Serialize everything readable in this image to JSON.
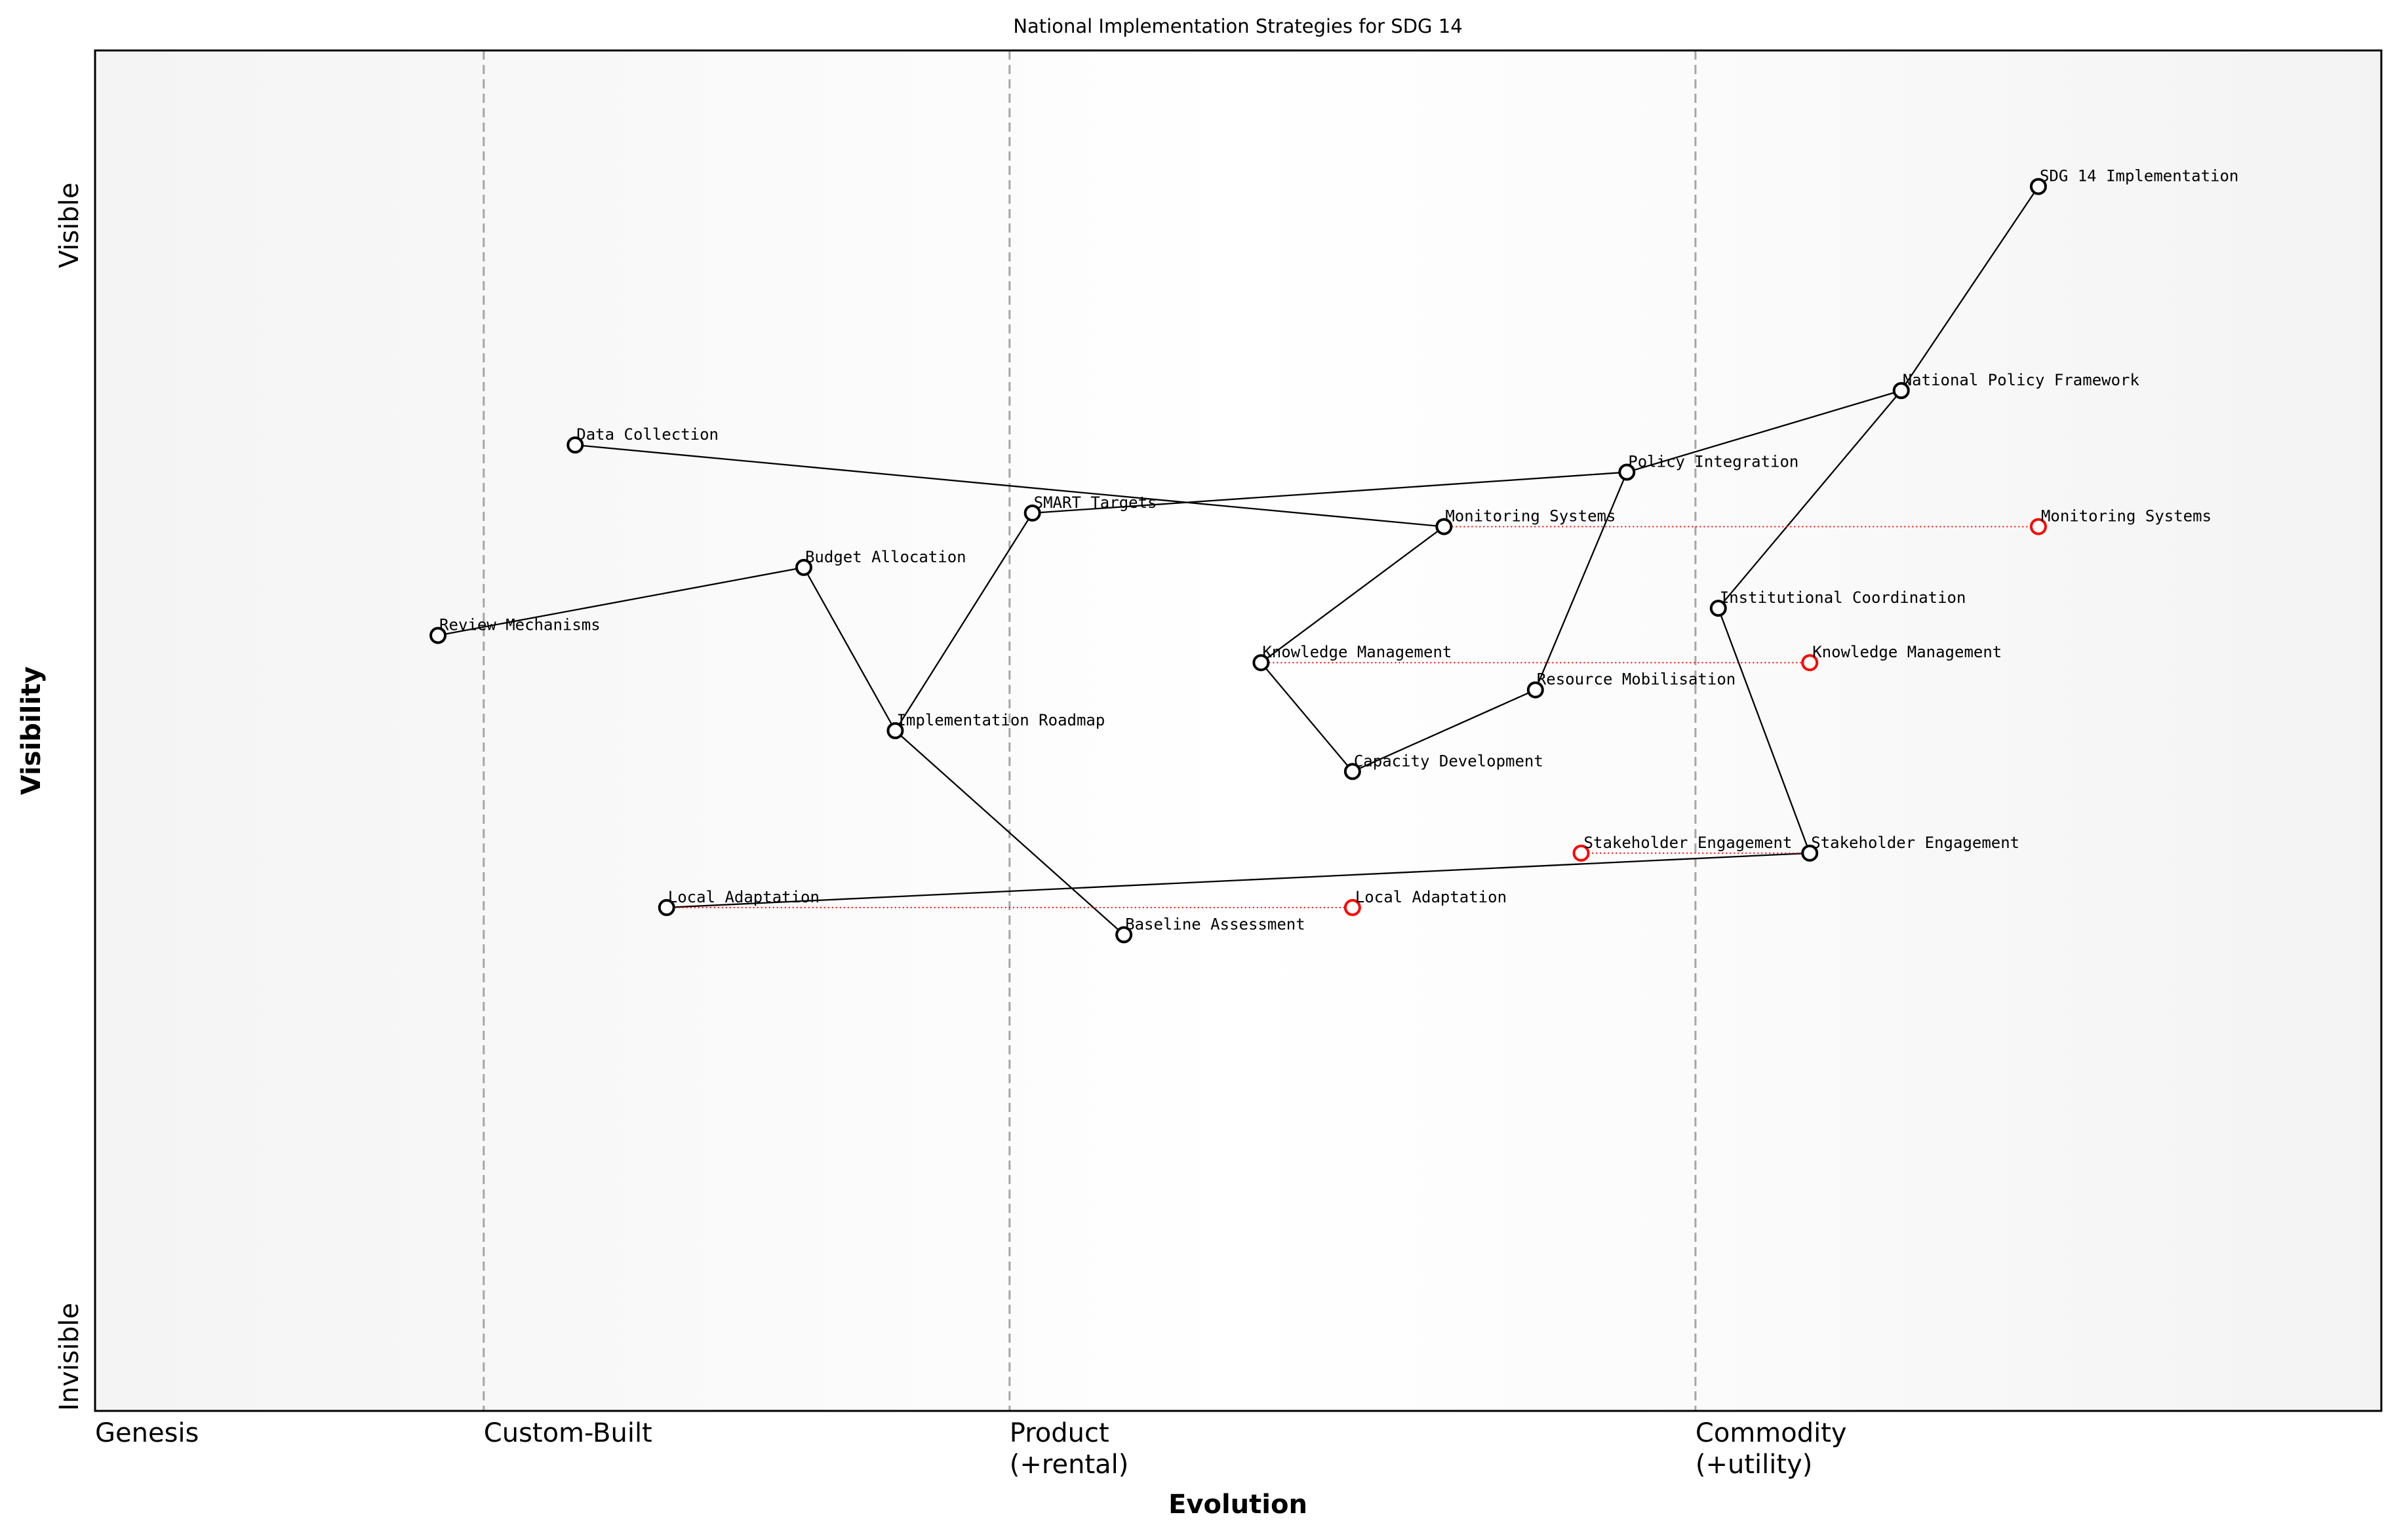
{
  "chart_data": {
    "type": "wardley",
    "title": "National Implementation Strategies for SDG 14",
    "x_label": "Evolution",
    "y_label": "Visibility",
    "xlim": [
      0,
      1
    ],
    "ylim": [
      0,
      1
    ],
    "xticks": [
      {
        "value": 0,
        "label": "Genesis"
      },
      {
        "value": 0.17,
        "label": "Custom-Built"
      },
      {
        "value": 0.4,
        "label": "Product\n(+rental)"
      },
      {
        "value": 0.7,
        "label": "Commodity\n(+utility)"
      }
    ],
    "yticks": [
      {
        "value": 0,
        "label": "Invisible"
      },
      {
        "value": 0.84,
        "label": "Visible"
      }
    ],
    "component_color": "#000000",
    "evolve_color": "#ff0000",
    "components": [
      {
        "name": "SDG 14 Implementation",
        "x": 0.85,
        "y": 0.9
      },
      {
        "name": "National Policy Framework",
        "x": 0.79,
        "y": 0.75
      },
      {
        "name": "Policy Integration",
        "x": 0.67,
        "y": 0.69
      },
      {
        "name": "Monitoring Systems",
        "x": 0.59,
        "y": 0.65
      },
      {
        "name": "Institutional Coordination",
        "x": 0.71,
        "y": 0.59
      },
      {
        "name": "Knowledge Management",
        "x": 0.51,
        "y": 0.55
      },
      {
        "name": "Resource Mobilisation",
        "x": 0.63,
        "y": 0.53
      },
      {
        "name": "Capacity Development",
        "x": 0.55,
        "y": 0.47
      },
      {
        "name": "Stakeholder Engagement",
        "x": 0.75,
        "y": 0.41
      },
      {
        "name": "Local Adaptation",
        "x": 0.25,
        "y": 0.37
      },
      {
        "name": "Baseline Assessment",
        "x": 0.45,
        "y": 0.35
      },
      {
        "name": "Implementation Roadmap",
        "x": 0.35,
        "y": 0.5
      },
      {
        "name": "SMART Targets",
        "x": 0.41,
        "y": 0.66
      },
      {
        "name": "Budget Allocation",
        "x": 0.31,
        "y": 0.62
      },
      {
        "name": "Review Mechanisms",
        "x": 0.15,
        "y": 0.57
      },
      {
        "name": "Data Collection",
        "x": 0.21,
        "y": 0.71
      }
    ],
    "links": [
      [
        "SDG 14 Implementation",
        "National Policy Framework"
      ],
      [
        "National Policy Framework",
        "Policy Integration"
      ],
      [
        "National Policy Framework",
        "Institutional Coordination"
      ],
      [
        "Policy Integration",
        "SMART Targets"
      ],
      [
        "Policy Integration",
        "Resource Mobilisation"
      ],
      [
        "Institutional Coordination",
        "Stakeholder Engagement"
      ],
      [
        "Stakeholder Engagement",
        "Local Adaptation"
      ],
      [
        "Resource Mobilisation",
        "Capacity Development"
      ],
      [
        "Capacity Development",
        "Knowledge Management"
      ],
      [
        "Knowledge Management",
        "Monitoring Systems"
      ],
      [
        "Monitoring Systems",
        "Data Collection"
      ],
      [
        "SMART Targets",
        "Implementation Roadmap"
      ],
      [
        "Implementation Roadmap",
        "Budget Allocation"
      ],
      [
        "Implementation Roadmap",
        "Baseline Assessment"
      ],
      [
        "Budget Allocation",
        "Review Mechanisms"
      ]
    ],
    "evolve": [
      {
        "component": "Monitoring Systems",
        "to": 0.85
      },
      {
        "component": "Knowledge Management",
        "to": 0.75
      },
      {
        "component": "Stakeholder Engagement",
        "to": 0.65
      },
      {
        "component": "Local Adaptation",
        "to": 0.55
      }
    ]
  }
}
